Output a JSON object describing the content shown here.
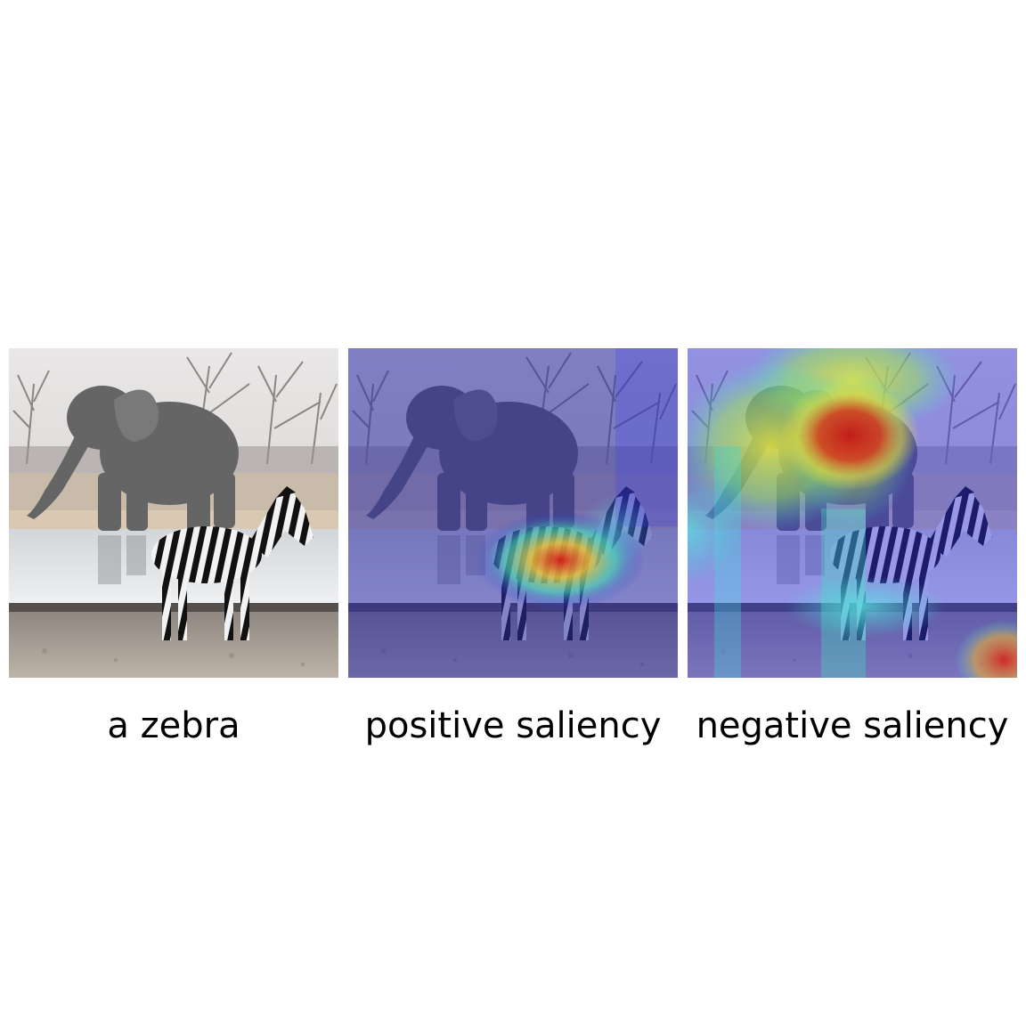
{
  "figure": {
    "panels": [
      {
        "caption": "a zebra",
        "overlay": "none"
      },
      {
        "caption": "positive saliency",
        "overlay": "positive"
      },
      {
        "caption": "negative saliency",
        "overlay": "negative"
      }
    ],
    "colors": {
      "sky": "#e8e6e6",
      "ground": "#b7aa9c",
      "water": "#d9dcdf",
      "elephant": "#6a6a6a",
      "jet_low": "#2a2ad8",
      "jet_mid": "#43e0e0",
      "jet_yellow": "#e8e83a",
      "jet_high": "#d8201a"
    }
  }
}
